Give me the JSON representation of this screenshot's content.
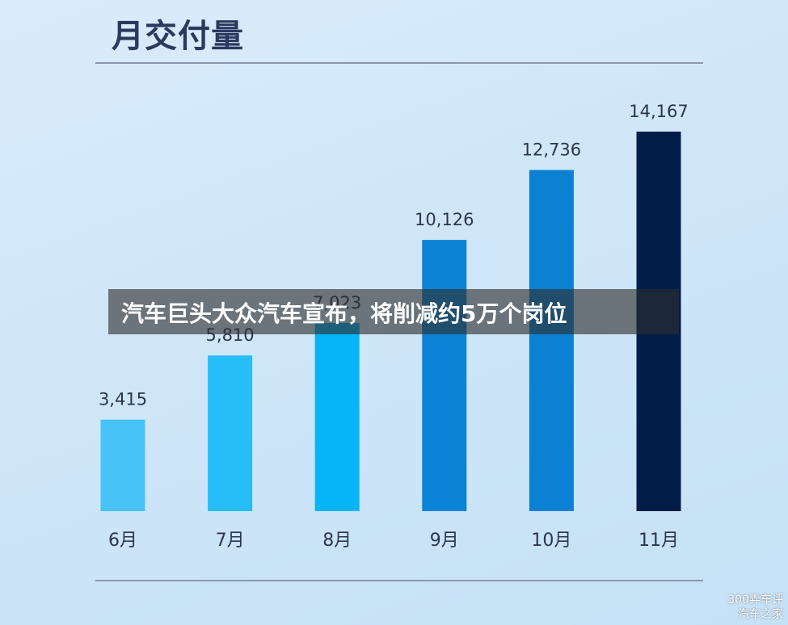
{
  "banner": {
    "text": "汽车巨头大众汽车宣布，将削减约5万个岗位"
  },
  "watermark": {
    "line1": "300弄车评",
    "line2": "汽车之家"
  },
  "chart_data": {
    "type": "bar",
    "title": "月交付量",
    "xlabel": "",
    "ylabel": "",
    "categories": [
      "6月",
      "7月",
      "8月",
      "9月",
      "10月",
      "11月"
    ],
    "values": [
      3415,
      5810,
      7023,
      10126,
      12736,
      14167
    ],
    "value_labels": [
      "3,415",
      "5,810",
      "7,023",
      "10,126",
      "12,736",
      "14,167"
    ],
    "colors": [
      "#47c3f7",
      "#26bdf8",
      "#06b4f7",
      "#0b83d6",
      "#0c80d2",
      "#011d47"
    ],
    "ylim": [
      0,
      14167
    ],
    "grid": false,
    "legend": "none"
  }
}
